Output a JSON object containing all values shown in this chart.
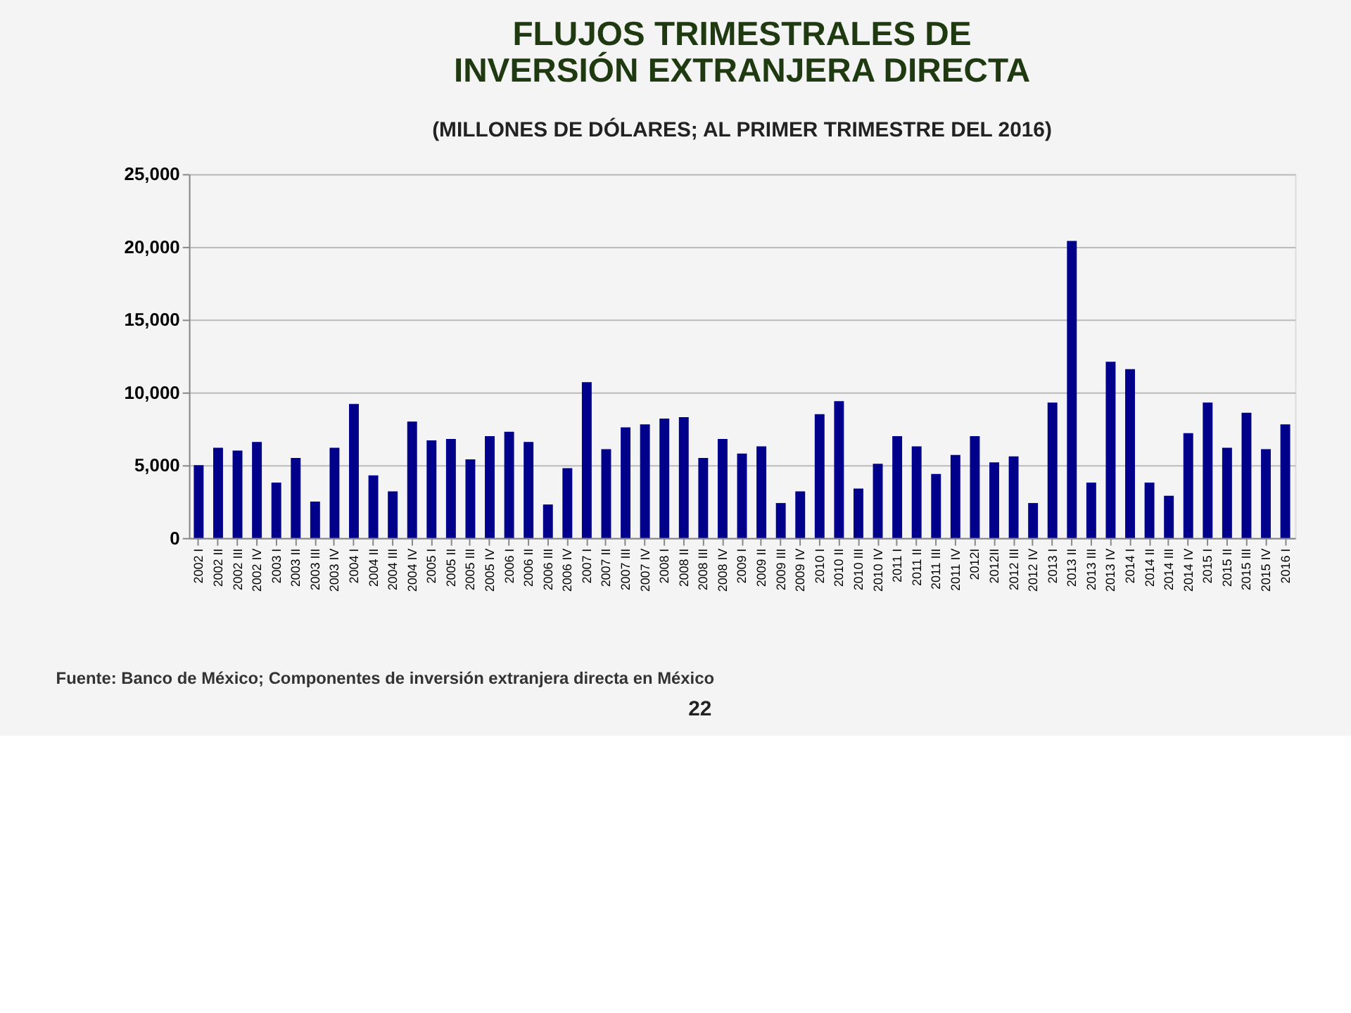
{
  "chart_data": {
    "type": "bar",
    "title": "FLUJOS TRIMESTRALES DE\nINVERSIÓN EXTRANJERA DIRECTA",
    "subtitle": "(MILLONES DE DÓLARES; AL PRIMER TRIMESTRE DEL 2016)",
    "categories": [
      "2002 I",
      "2002 II",
      "2002 III",
      "2002 IV",
      "2003 I",
      "2003 II",
      "2003 III",
      "2003 IV",
      "2004 I",
      "2004 II",
      "2004 III",
      "2004 IV",
      "2005 I",
      "2005 II",
      "2005 III",
      "2005 IV",
      "2006 I",
      "2006 II",
      "2006 III",
      "2006 IV",
      "2007 I",
      "2007 II",
      "2007 III",
      "2007 IV",
      "2008 I",
      "2008 II",
      "2008 III",
      "2008 IV",
      "2009 I",
      "2009 II",
      "2009 III",
      "2009 IV",
      "2010 I",
      "2010 II",
      "2010 III",
      "2010 IV",
      "2011 I",
      "2011 II",
      "2011 III",
      "2011 IV",
      "2012I",
      "2012II",
      "2012 III",
      "2012 IV",
      "2013 I",
      "2013 II",
      "2013 III",
      "2013 IV",
      "2014 I",
      "2014 II",
      "2014 III",
      "2014 IV",
      "2015 I",
      "2015 II",
      "2015 III",
      "2015 IV",
      "2016 I"
    ],
    "values": [
      5000,
      6200,
      6000,
      6600,
      3800,
      5500,
      2500,
      6200,
      9200,
      4300,
      3200,
      8000,
      6700,
      6800,
      5400,
      7000,
      7300,
      6600,
      2300,
      4800,
      10700,
      6100,
      7600,
      7800,
      8200,
      8300,
      5500,
      6800,
      5800,
      6300,
      2400,
      3200,
      8500,
      9400,
      3400,
      5100,
      7000,
      6300,
      4400,
      5700,
      7000,
      5200,
      5600,
      2400,
      9300,
      20400,
      3800,
      12100,
      11600,
      3800,
      2900,
      7200,
      9300,
      6200,
      8600,
      6100,
      7800
    ],
    "color": "#00008b",
    "ylim": [
      0,
      25000
    ],
    "yticks": [
      0,
      {
        "value": 5000,
        "label": "5,000"
      },
      {
        "value": 10000,
        "label": "10,000"
      },
      {
        "value": 15000,
        "label": "15,000"
      },
      {
        "value": 20000,
        "label": "20,000"
      },
      {
        "value": 25000,
        "label": "25,000"
      }
    ],
    "grid": "y",
    "annotations": [
      "Fuente: Banco de México; Componentes de inversión extranjera directa en México",
      "22"
    ]
  }
}
